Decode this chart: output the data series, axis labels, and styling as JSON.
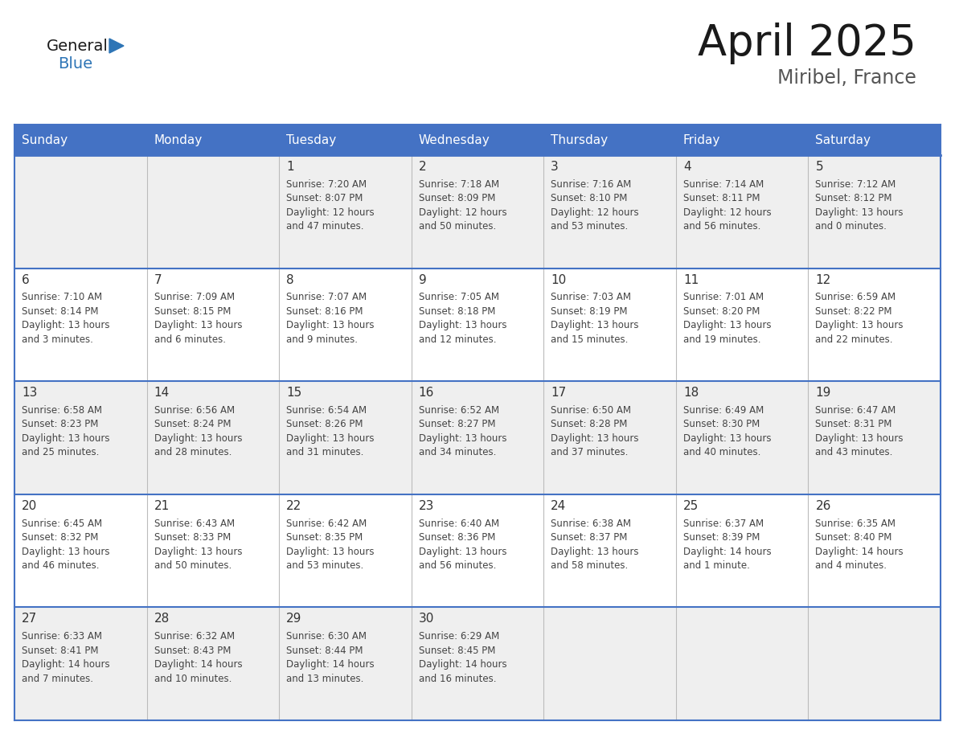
{
  "title": "April 2025",
  "subtitle": "Miribel, France",
  "header_bg": "#4472c4",
  "header_text": "#ffffff",
  "days_of_week": [
    "Sunday",
    "Monday",
    "Tuesday",
    "Wednesday",
    "Thursday",
    "Friday",
    "Saturday"
  ],
  "row_bg_odd": "#efefef",
  "row_bg_even": "#ffffff",
  "border_color": "#4472c4",
  "text_color": "#444444",
  "day_num_color": "#333333",
  "logo_general_color": "#1a1a1a",
  "logo_blue_color": "#2e75b6",
  "weeks": [
    [
      {
        "day": null,
        "sunrise": null,
        "sunset": null,
        "daylight": null
      },
      {
        "day": null,
        "sunrise": null,
        "sunset": null,
        "daylight": null
      },
      {
        "day": 1,
        "sunrise": "7:20 AM",
        "sunset": "8:07 PM",
        "daylight": "12 hours and 47 minutes."
      },
      {
        "day": 2,
        "sunrise": "7:18 AM",
        "sunset": "8:09 PM",
        "daylight": "12 hours and 50 minutes."
      },
      {
        "day": 3,
        "sunrise": "7:16 AM",
        "sunset": "8:10 PM",
        "daylight": "12 hours and 53 minutes."
      },
      {
        "day": 4,
        "sunrise": "7:14 AM",
        "sunset": "8:11 PM",
        "daylight": "12 hours and 56 minutes."
      },
      {
        "day": 5,
        "sunrise": "7:12 AM",
        "sunset": "8:12 PM",
        "daylight": "13 hours and 0 minutes."
      }
    ],
    [
      {
        "day": 6,
        "sunrise": "7:10 AM",
        "sunset": "8:14 PM",
        "daylight": "13 hours and 3 minutes."
      },
      {
        "day": 7,
        "sunrise": "7:09 AM",
        "sunset": "8:15 PM",
        "daylight": "13 hours and 6 minutes."
      },
      {
        "day": 8,
        "sunrise": "7:07 AM",
        "sunset": "8:16 PM",
        "daylight": "13 hours and 9 minutes."
      },
      {
        "day": 9,
        "sunrise": "7:05 AM",
        "sunset": "8:18 PM",
        "daylight": "13 hours and 12 minutes."
      },
      {
        "day": 10,
        "sunrise": "7:03 AM",
        "sunset": "8:19 PM",
        "daylight": "13 hours and 15 minutes."
      },
      {
        "day": 11,
        "sunrise": "7:01 AM",
        "sunset": "8:20 PM",
        "daylight": "13 hours and 19 minutes."
      },
      {
        "day": 12,
        "sunrise": "6:59 AM",
        "sunset": "8:22 PM",
        "daylight": "13 hours and 22 minutes."
      }
    ],
    [
      {
        "day": 13,
        "sunrise": "6:58 AM",
        "sunset": "8:23 PM",
        "daylight": "13 hours and 25 minutes."
      },
      {
        "day": 14,
        "sunrise": "6:56 AM",
        "sunset": "8:24 PM",
        "daylight": "13 hours and 28 minutes."
      },
      {
        "day": 15,
        "sunrise": "6:54 AM",
        "sunset": "8:26 PM",
        "daylight": "13 hours and 31 minutes."
      },
      {
        "day": 16,
        "sunrise": "6:52 AM",
        "sunset": "8:27 PM",
        "daylight": "13 hours and 34 minutes."
      },
      {
        "day": 17,
        "sunrise": "6:50 AM",
        "sunset": "8:28 PM",
        "daylight": "13 hours and 37 minutes."
      },
      {
        "day": 18,
        "sunrise": "6:49 AM",
        "sunset": "8:30 PM",
        "daylight": "13 hours and 40 minutes."
      },
      {
        "day": 19,
        "sunrise": "6:47 AM",
        "sunset": "8:31 PM",
        "daylight": "13 hours and 43 minutes."
      }
    ],
    [
      {
        "day": 20,
        "sunrise": "6:45 AM",
        "sunset": "8:32 PM",
        "daylight": "13 hours and 46 minutes."
      },
      {
        "day": 21,
        "sunrise": "6:43 AM",
        "sunset": "8:33 PM",
        "daylight": "13 hours and 50 minutes."
      },
      {
        "day": 22,
        "sunrise": "6:42 AM",
        "sunset": "8:35 PM",
        "daylight": "13 hours and 53 minutes."
      },
      {
        "day": 23,
        "sunrise": "6:40 AM",
        "sunset": "8:36 PM",
        "daylight": "13 hours and 56 minutes."
      },
      {
        "day": 24,
        "sunrise": "6:38 AM",
        "sunset": "8:37 PM",
        "daylight": "13 hours and 58 minutes."
      },
      {
        "day": 25,
        "sunrise": "6:37 AM",
        "sunset": "8:39 PM",
        "daylight": "14 hours and 1 minute."
      },
      {
        "day": 26,
        "sunrise": "6:35 AM",
        "sunset": "8:40 PM",
        "daylight": "14 hours and 4 minutes."
      }
    ],
    [
      {
        "day": 27,
        "sunrise": "6:33 AM",
        "sunset": "8:41 PM",
        "daylight": "14 hours and 7 minutes."
      },
      {
        "day": 28,
        "sunrise": "6:32 AM",
        "sunset": "8:43 PM",
        "daylight": "14 hours and 10 minutes."
      },
      {
        "day": 29,
        "sunrise": "6:30 AM",
        "sunset": "8:44 PM",
        "daylight": "14 hours and 13 minutes."
      },
      {
        "day": 30,
        "sunrise": "6:29 AM",
        "sunset": "8:45 PM",
        "daylight": "14 hours and 16 minutes."
      },
      {
        "day": null,
        "sunrise": null,
        "sunset": null,
        "daylight": null
      },
      {
        "day": null,
        "sunrise": null,
        "sunset": null,
        "daylight": null
      },
      {
        "day": null,
        "sunrise": null,
        "sunset": null,
        "daylight": null
      }
    ]
  ]
}
